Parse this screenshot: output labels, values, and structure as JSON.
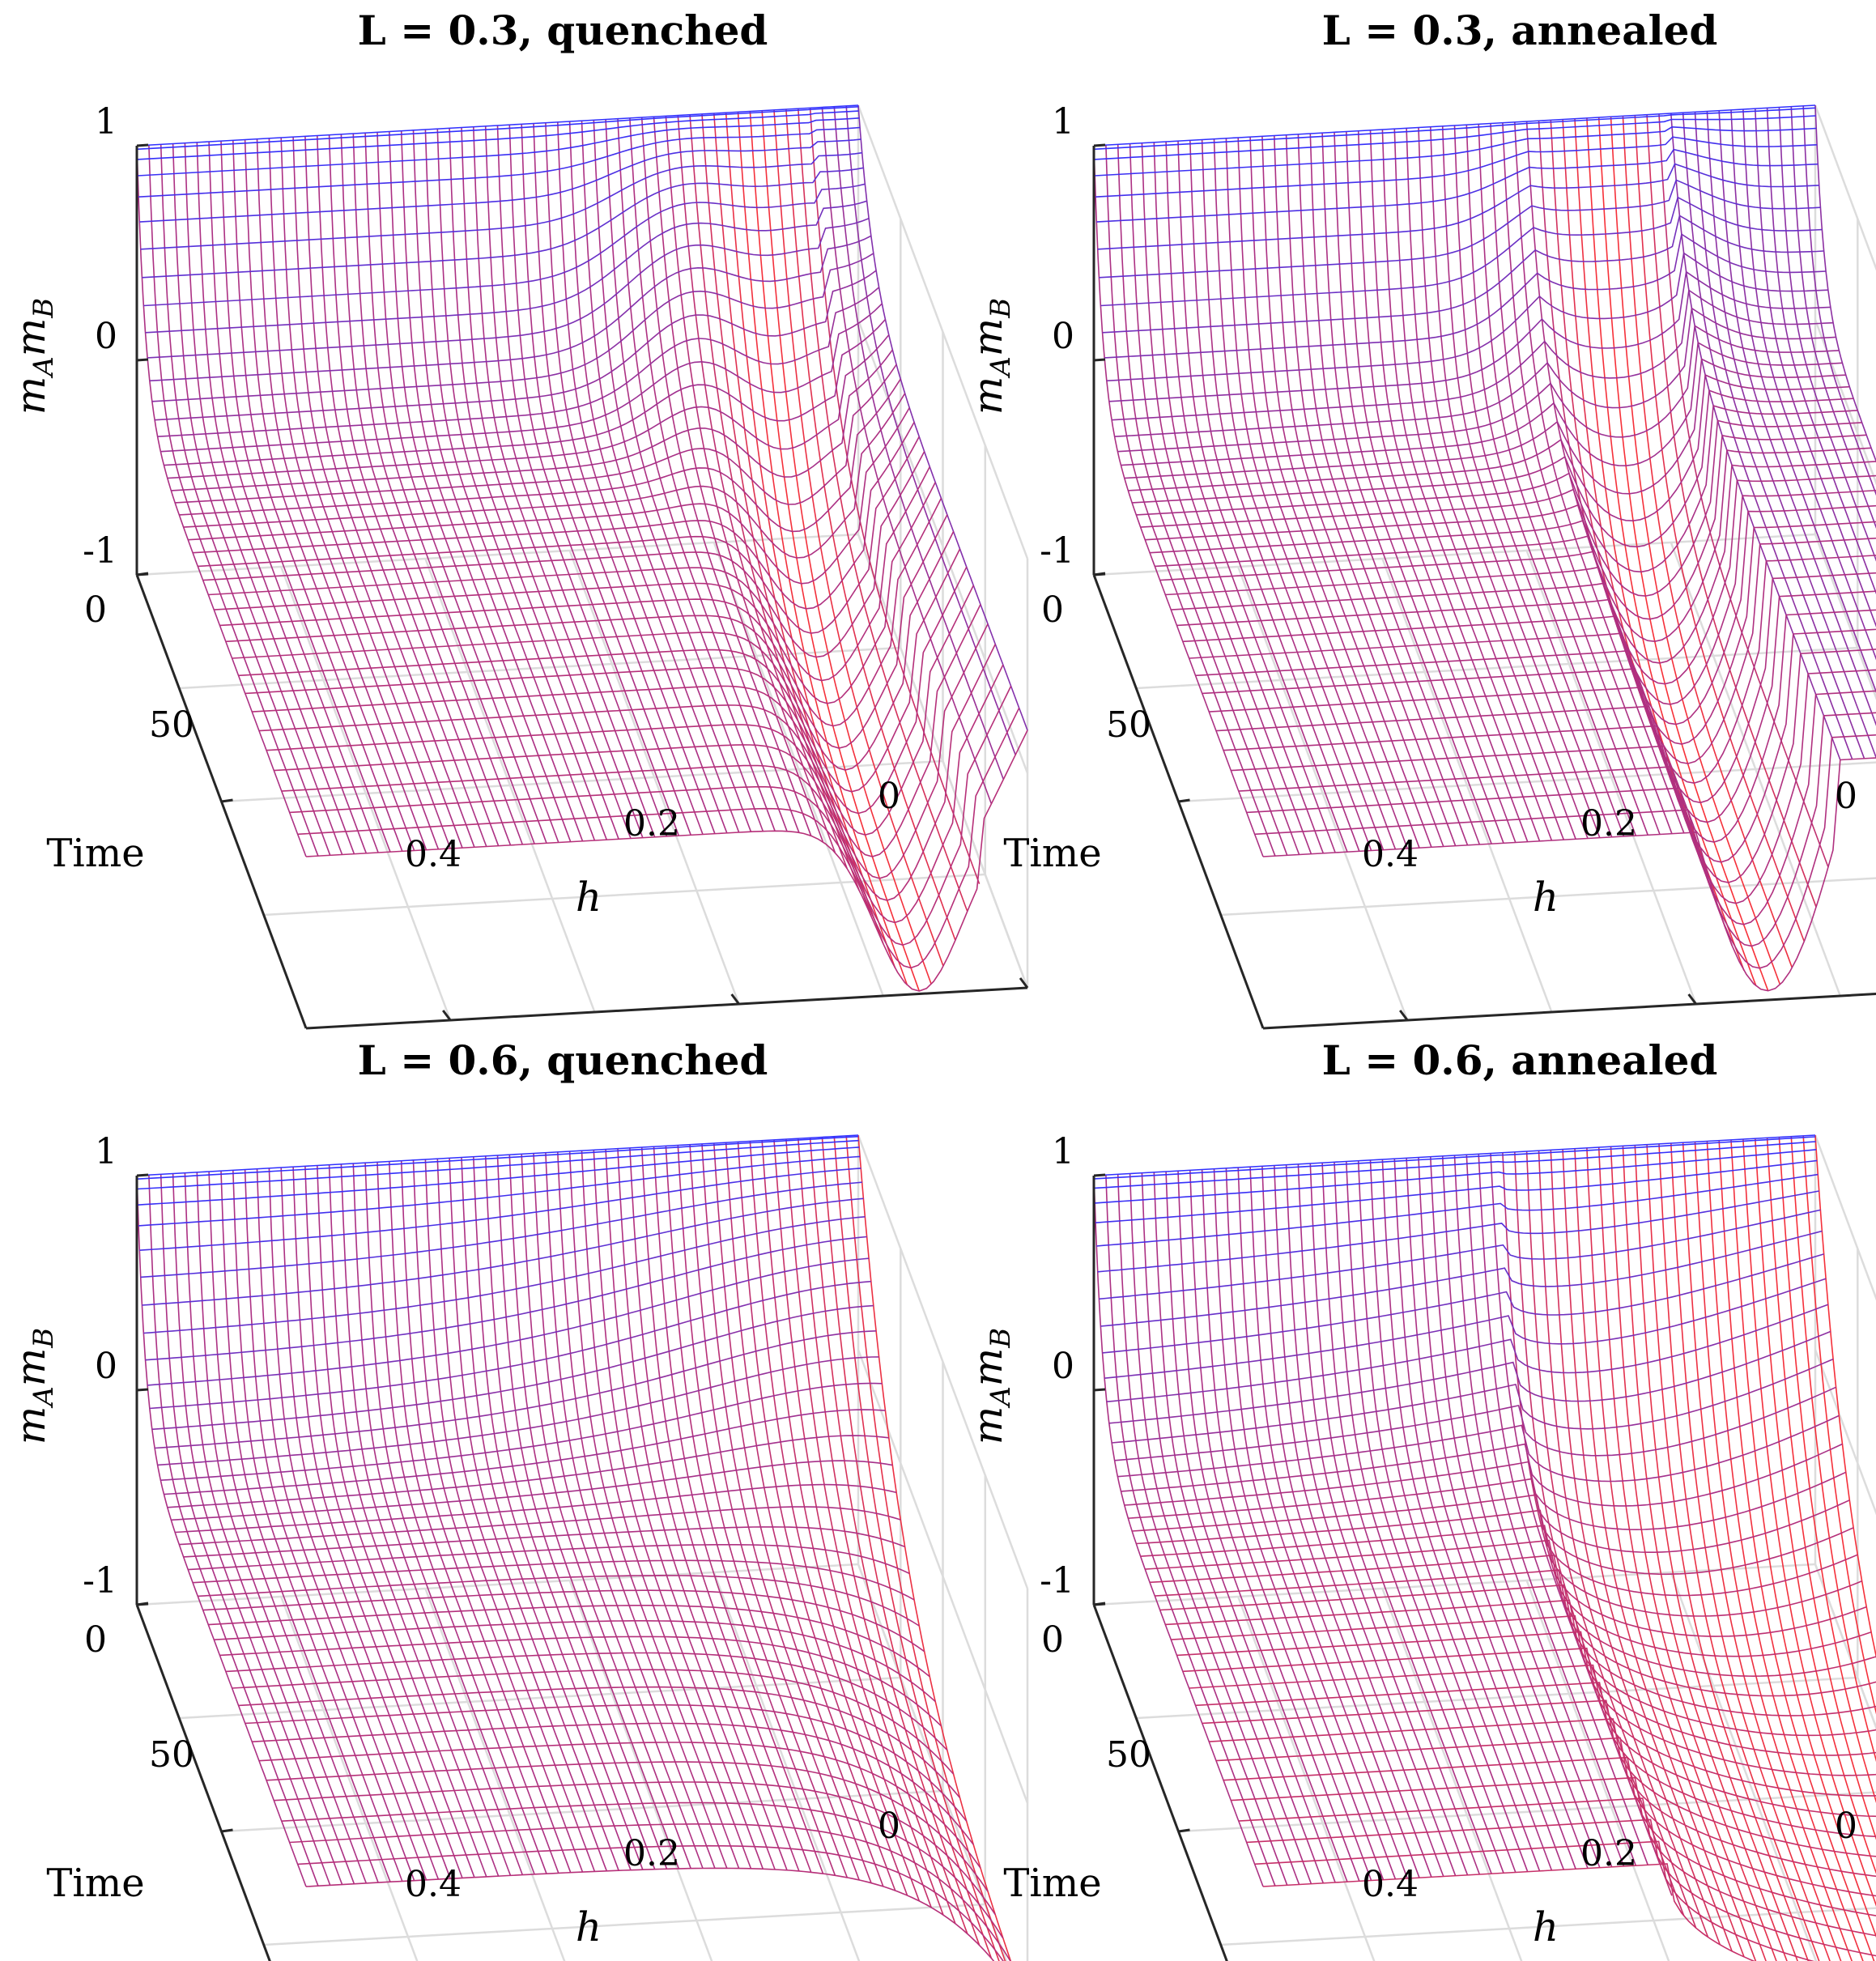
{
  "figure": {
    "panels": [
      {
        "id": "p1",
        "title": "L = 0.3, quenched",
        "variant": "L03q",
        "z_label": "m_A m_B",
        "x_label": "h",
        "y_label": "Time",
        "z_ticks": [
          "1",
          "0",
          "-1"
        ],
        "y_ticks": [
          "0",
          "50"
        ],
        "x_ticks": [
          "0.4",
          "0.2",
          "0"
        ]
      },
      {
        "id": "p2",
        "title": "L = 0.3, annealed",
        "variant": "L03a",
        "z_label": "m_A m_B",
        "x_label": "h",
        "y_label": "Time",
        "z_ticks": [
          "1",
          "0",
          "-1"
        ],
        "y_ticks": [
          "0",
          "50"
        ],
        "x_ticks": [
          "0.4",
          "0.2",
          "0"
        ]
      },
      {
        "id": "p3",
        "title": "L = 0.6, quenched",
        "variant": "L06q",
        "z_label": "m_A m_B",
        "x_label": "h",
        "y_label": "Time",
        "z_ticks": [
          "1",
          "0",
          "-1"
        ],
        "y_ticks": [
          "0",
          "50"
        ],
        "x_ticks": [
          "0.4",
          "0.2",
          "0"
        ]
      },
      {
        "id": "p4",
        "title": "L = 0.6, annealed",
        "variant": "L06a",
        "z_label": "m_A m_B",
        "x_label": "h",
        "y_label": "Time",
        "z_ticks": [
          "1",
          "0",
          "-1"
        ],
        "y_ticks": [
          "0",
          "50"
        ],
        "x_ticks": [
          "0.4",
          "0.2",
          "0"
        ]
      }
    ]
  },
  "chart_data": [
    {
      "type": "surface",
      "title": "L = 0.3, quenched",
      "xlabel": "h",
      "ylabel": "Time",
      "zlabel": "m_A m_B",
      "xlim": [
        0,
        0.5
      ],
      "ylim": [
        0,
        100
      ],
      "zlim": [
        -1,
        1
      ],
      "colormap": {
        "low": "#ff3030",
        "high": "#3030ff"
      },
      "description_of_surface": "m_A m_B starts at 1 at Time 0 for all h and relaxes to about -0.2 for large h; near h ~ 0.08 it dips to about -1 at late times; for h < 0.03 it stays near 0.2 (upper right ridge)."
    },
    {
      "type": "surface",
      "title": "L = 0.3, annealed",
      "xlabel": "h",
      "ylabel": "Time",
      "zlabel": "m_A m_B",
      "xlim": [
        0,
        0.5
      ],
      "ylim": [
        0,
        100
      ],
      "zlim": [
        -1,
        1
      ],
      "colormap": {
        "low": "#ff3030",
        "high": "#3030ff"
      },
      "description_of_surface": "Similar relaxation to about -0.2 for large h; a sharp trough to about -1 between h ~ 0.1 and h ~ 0.2; for small h the value stays near 0.1."
    },
    {
      "type": "surface",
      "title": "L = 0.6, quenched",
      "xlabel": "h",
      "ylabel": "Time",
      "zlabel": "m_A m_B",
      "xlim": [
        0,
        0.5
      ],
      "ylim": [
        0,
        100
      ],
      "zlim": [
        -1,
        1
      ],
      "colormap": {
        "low": "#ff3030",
        "high": "#3030ff"
      },
      "description_of_surface": "Relaxes to about -0.2 for large h and falls smoothly toward -1 as h approaches 0 at late times."
    },
    {
      "type": "surface",
      "title": "L = 0.6, annealed",
      "xlabel": "h",
      "ylabel": "Time",
      "zlabel": "m_A m_B",
      "xlim": [
        0,
        0.5
      ],
      "ylim": [
        0,
        100
      ],
      "zlim": [
        -1,
        1
      ],
      "colormap": {
        "low": "#ff3030",
        "high": "#3030ff"
      },
      "description_of_surface": "Relaxes to about -0.2 for large h; a wider trough toward -1 for h below about 0.2 at late times, ending near -1 at h = 0."
    }
  ]
}
